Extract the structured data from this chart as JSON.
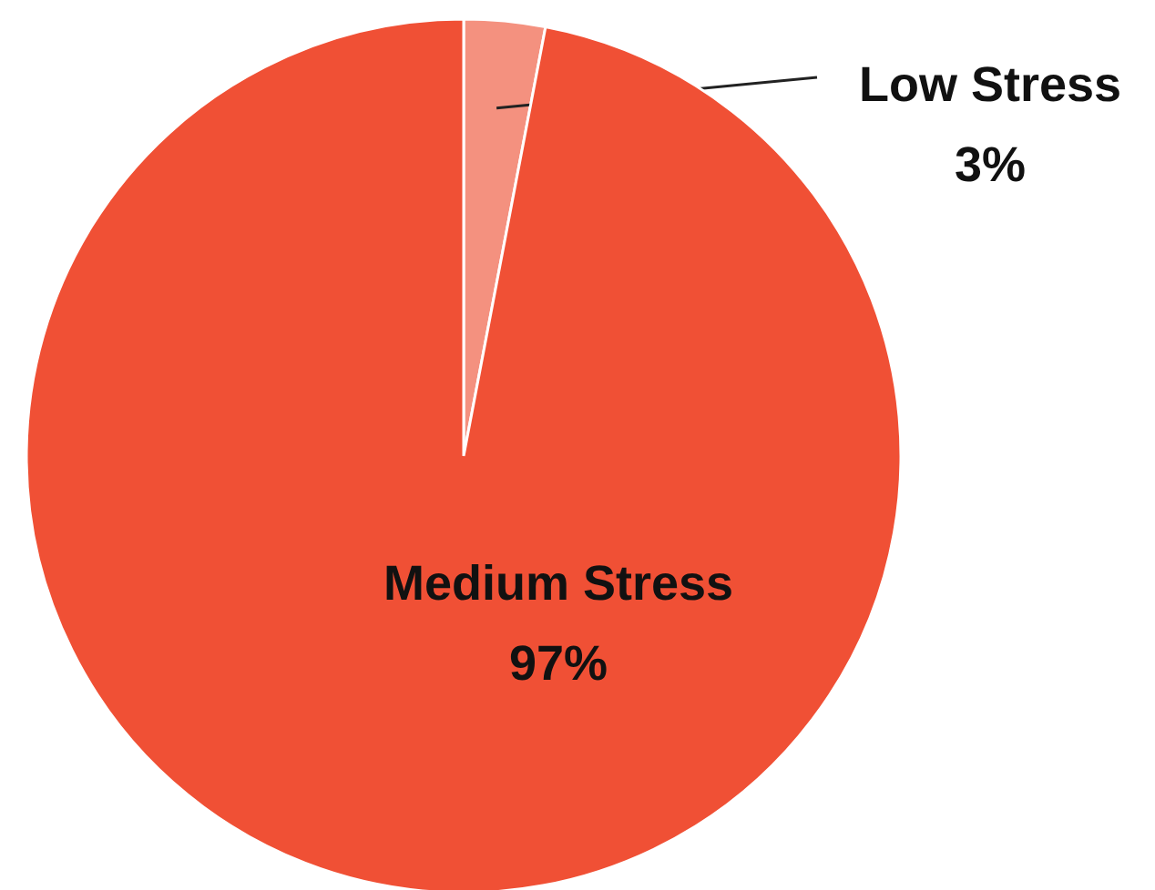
{
  "chart_data": {
    "type": "pie",
    "categories": [
      "Low Stress",
      "Medium Stress"
    ],
    "values": [
      3,
      97
    ],
    "colors": [
      "#f4917f",
      "#f05035"
    ],
    "value_labels": [
      "3%",
      "97%"
    ]
  }
}
